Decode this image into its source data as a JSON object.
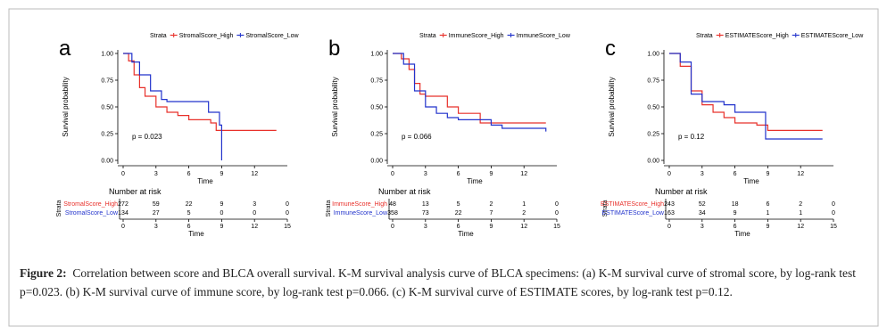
{
  "chart_data": [
    {
      "type": "km",
      "panel": "a",
      "legend_title": "Strata",
      "ylabel": "Survival probability",
      "xlabel": "Time",
      "annotation": "p = 0.023",
      "xlim": [
        0,
        15
      ],
      "xticks": [
        0,
        3,
        6,
        9,
        12
      ],
      "ylim": [
        0,
        1
      ],
      "yticks": [
        {
          "value": 0,
          "label": "0.00"
        },
        {
          "value": 0.25,
          "label": "0.25"
        },
        {
          "value": 0.5,
          "label": "0.50"
        },
        {
          "value": 0.75,
          "label": "0.75"
        },
        {
          "value": 1,
          "label": "1.00"
        }
      ],
      "series": [
        {
          "name": "StromalScore_High",
          "color": "#e8302a",
          "x": [
            0,
            0.5,
            1,
            1.5,
            2,
            3,
            4,
            5,
            6,
            8,
            8.5,
            14
          ],
          "values": [
            1,
            0.93,
            0.8,
            0.68,
            0.6,
            0.5,
            0.45,
            0.42,
            0.38,
            0.35,
            0.28,
            0.28
          ]
        },
        {
          "name": "StromalScore_Low",
          "color": "#2233cc",
          "x": [
            0,
            0.8,
            1.5,
            2.5,
            3.5,
            4,
            7.8,
            8.8,
            9
          ],
          "values": [
            1,
            0.92,
            0.8,
            0.65,
            0.57,
            0.55,
            0.45,
            0.33,
            0
          ]
        }
      ],
      "risk_table": {
        "title": "Number at risk",
        "ylabel": "Strata",
        "xlabel": "Time",
        "xticks": [
          0,
          3,
          6,
          9,
          12,
          15
        ],
        "rows": [
          {
            "name": "StromalScore_High",
            "counts": [
              272,
              59,
              22,
              9,
              3,
              0
            ]
          },
          {
            "name": "StromalScore_Low",
            "counts": [
              134,
              27,
              5,
              0,
              0,
              0
            ]
          }
        ]
      }
    },
    {
      "type": "km",
      "panel": "b",
      "legend_title": "Strata",
      "ylabel": "Survival probability",
      "xlabel": "Time",
      "annotation": "p = 0.066",
      "xlim": [
        0,
        15
      ],
      "xticks": [
        0,
        3,
        6,
        9,
        12
      ],
      "ylim": [
        0,
        1
      ],
      "yticks": [
        {
          "value": 0,
          "label": "0.00"
        },
        {
          "value": 0.25,
          "label": "0.25"
        },
        {
          "value": 0.5,
          "label": "0.50"
        },
        {
          "value": 0.75,
          "label": "0.75"
        },
        {
          "value": 1,
          "label": "1.00"
        }
      ],
      "series": [
        {
          "name": "ImmuneScore_High",
          "color": "#e8302a",
          "x": [
            0,
            0.8,
            1.5,
            2,
            2.5,
            3,
            5,
            6,
            8,
            14
          ],
          "values": [
            1,
            0.95,
            0.85,
            0.72,
            0.62,
            0.6,
            0.5,
            0.44,
            0.35,
            0.35
          ]
        },
        {
          "name": "ImmuneScore_Low",
          "color": "#2233cc",
          "x": [
            0,
            1,
            2,
            3,
            4,
            5,
            6,
            9,
            10,
            14
          ],
          "values": [
            1,
            0.9,
            0.65,
            0.5,
            0.44,
            0.4,
            0.38,
            0.33,
            0.3,
            0.27
          ]
        }
      ],
      "risk_table": {
        "title": "Number at risk",
        "ylabel": "Strata",
        "xlabel": "Time",
        "xticks": [
          0,
          3,
          6,
          9,
          12,
          15
        ],
        "rows": [
          {
            "name": "ImmuneScore_High",
            "counts": [
              48,
              13,
              5,
              2,
              1,
              0
            ]
          },
          {
            "name": "ImmuneScore_Low",
            "counts": [
              358,
              73,
              22,
              7,
              2,
              0
            ]
          }
        ]
      }
    },
    {
      "type": "km",
      "panel": "c",
      "legend_title": "Strata",
      "ylabel": "Survival probability",
      "xlabel": "Time",
      "annotation": "p = 0.12",
      "xlim": [
        0,
        15
      ],
      "xticks": [
        0,
        3,
        6,
        9,
        12
      ],
      "ylim": [
        0,
        1
      ],
      "yticks": [
        {
          "value": 0,
          "label": "0.00"
        },
        {
          "value": 0.25,
          "label": "0.25"
        },
        {
          "value": 0.5,
          "label": "0.50"
        },
        {
          "value": 0.75,
          "label": "0.75"
        },
        {
          "value": 1,
          "label": "1.00"
        }
      ],
      "series": [
        {
          "name": "ESTIMATEScore_High",
          "color": "#e8302a",
          "x": [
            0,
            1,
            2,
            3,
            4,
            5,
            6,
            8,
            9,
            14
          ],
          "values": [
            1,
            0.88,
            0.65,
            0.52,
            0.45,
            0.4,
            0.35,
            0.33,
            0.28,
            0.28
          ]
        },
        {
          "name": "ESTIMATEScore_Low",
          "color": "#2233cc",
          "x": [
            0,
            1,
            2,
            3,
            5,
            6,
            8.8,
            14
          ],
          "values": [
            1,
            0.92,
            0.62,
            0.55,
            0.52,
            0.45,
            0.2,
            0.2
          ]
        }
      ],
      "risk_table": {
        "title": "Number at risk",
        "ylabel": "Strata",
        "xlabel": "Time",
        "xticks": [
          0,
          3,
          6,
          9,
          12,
          15
        ],
        "rows": [
          {
            "name": "ESTIMATEScore_High",
            "counts": [
              243,
              52,
              18,
              6,
              2,
              0
            ]
          },
          {
            "name": "ESTIMATEScore_Low",
            "counts": [
              163,
              34,
              9,
              1,
              1,
              0
            ]
          }
        ]
      }
    }
  ],
  "caption": {
    "label": "Figure 2:",
    "text": "Correlation between score and BLCA overall survival. K-M survival analysis curve of BLCA specimens: (a) K-M survival curve of stromal score, by log-rank test p=0.023. (b) K-M survival curve of immune score, by log-rank test p=0.066. (c) K-M survival curve of ESTIMATE scores, by log-rank test p=0.12."
  }
}
